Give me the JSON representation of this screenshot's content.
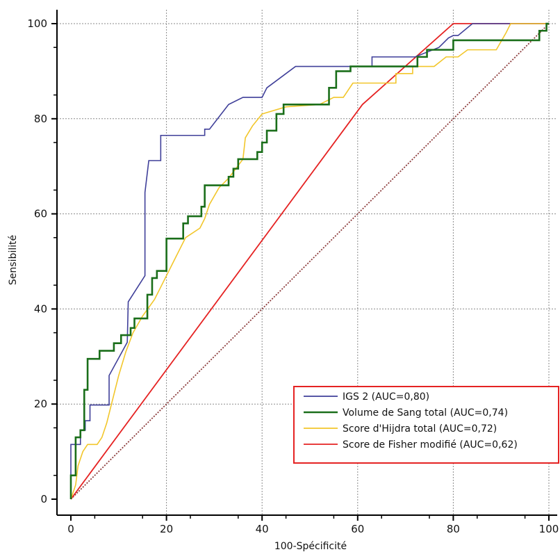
{
  "chart_data": {
    "type": "line",
    "title": "",
    "xlabel": "100-Spécificité",
    "ylabel": "Sensibilité",
    "xlim": [
      0,
      100
    ],
    "ylim": [
      0,
      100
    ],
    "x_ticks": [
      "0",
      "20",
      "40",
      "60",
      "80",
      "100"
    ],
    "y_ticks": [
      "0",
      "20",
      "40",
      "60",
      "80",
      "100"
    ],
    "grid": true,
    "legend_position": "bottom-right",
    "reference_line": {
      "color": "#8b3a3a",
      "points": [
        [
          0,
          0
        ],
        [
          100,
          100
        ]
      ]
    },
    "series": [
      {
        "name": "IGS 2 (AUC=0,80)",
        "color": "#3f3f99",
        "points": [
          [
            0,
            0
          ],
          [
            0,
            11.5
          ],
          [
            2,
            11.5
          ],
          [
            2,
            14.5
          ],
          [
            3,
            14.5
          ],
          [
            3,
            16.5
          ],
          [
            4,
            16.5
          ],
          [
            4,
            19.8
          ],
          [
            8,
            19.8
          ],
          [
            8,
            26
          ],
          [
            11.8,
            33
          ],
          [
            12,
            41.5
          ],
          [
            15.5,
            47
          ],
          [
            15.5,
            64.5
          ],
          [
            16.3,
            71.2
          ],
          [
            18.8,
            71.2
          ],
          [
            18.8,
            76.5
          ],
          [
            28,
            76.5
          ],
          [
            28,
            77.8
          ],
          [
            29,
            77.8
          ],
          [
            33,
            83
          ],
          [
            36,
            84.5
          ],
          [
            40,
            84.5
          ],
          [
            41,
            86.5
          ],
          [
            47,
            91
          ],
          [
            63,
            91
          ],
          [
            63,
            93
          ],
          [
            72,
            93
          ],
          [
            77,
            95
          ],
          [
            79,
            97
          ],
          [
            80,
            97.5
          ],
          [
            81,
            97.5
          ],
          [
            84,
            100
          ],
          [
            100,
            100
          ]
        ]
      },
      {
        "name": "Volume de Sang total (AUC=0,74)",
        "color": "#1a6e1a",
        "points": [
          [
            0,
            0
          ],
          [
            0,
            5
          ],
          [
            1,
            5
          ],
          [
            1,
            13
          ],
          [
            2,
            13
          ],
          [
            2,
            14.5
          ],
          [
            2.8,
            14.5
          ],
          [
            2.8,
            23
          ],
          [
            3.5,
            23
          ],
          [
            3.5,
            29.5
          ],
          [
            6,
            29.5
          ],
          [
            6,
            31.2
          ],
          [
            9,
            31.2
          ],
          [
            9,
            32.8
          ],
          [
            10.5,
            32.8
          ],
          [
            10.5,
            34.5
          ],
          [
            12.5,
            34.5
          ],
          [
            12.5,
            36
          ],
          [
            13.3,
            36
          ],
          [
            13.3,
            38
          ],
          [
            16,
            38
          ],
          [
            16,
            43
          ],
          [
            17,
            43
          ],
          [
            17,
            46.5
          ],
          [
            18,
            46.5
          ],
          [
            18,
            48
          ],
          [
            20,
            48
          ],
          [
            20,
            54.8
          ],
          [
            23.5,
            54.8
          ],
          [
            23.5,
            58
          ],
          [
            24.5,
            58
          ],
          [
            24.5,
            59.5
          ],
          [
            27.3,
            59.5
          ],
          [
            27.3,
            61.5
          ],
          [
            28,
            61.5
          ],
          [
            28,
            66
          ],
          [
            33,
            66
          ],
          [
            33,
            67.8
          ],
          [
            34,
            67.8
          ],
          [
            34,
            69.5
          ],
          [
            35,
            69.5
          ],
          [
            35,
            71.5
          ],
          [
            39,
            71.5
          ],
          [
            39,
            73
          ],
          [
            40,
            73
          ],
          [
            40,
            75
          ],
          [
            41,
            75
          ],
          [
            41,
            77.5
          ],
          [
            43,
            77.5
          ],
          [
            43,
            81
          ],
          [
            44.5,
            81
          ],
          [
            44.5,
            83
          ],
          [
            54,
            83
          ],
          [
            54,
            86.5
          ],
          [
            55.5,
            86.5
          ],
          [
            55.5,
            90
          ],
          [
            58.5,
            90
          ],
          [
            58.5,
            91
          ],
          [
            72.5,
            91
          ],
          [
            72.5,
            93
          ],
          [
            74.5,
            93
          ],
          [
            74.5,
            94.5
          ],
          [
            80,
            94.5
          ],
          [
            80,
            96.5
          ],
          [
            98,
            96.5
          ],
          [
            98,
            98.5
          ],
          [
            99.5,
            98.5
          ],
          [
            99.5,
            100
          ],
          [
            100,
            100
          ]
        ]
      },
      {
        "name": "Score d'Hijdra total (AUC=0,72)",
        "color": "#f2c62a",
        "points": [
          [
            0,
            0
          ],
          [
            1,
            3
          ],
          [
            1.5,
            7
          ],
          [
            2.5,
            10
          ],
          [
            3.5,
            11.5
          ],
          [
            5.5,
            11.5
          ],
          [
            6.5,
            13
          ],
          [
            7.5,
            16
          ],
          [
            8.5,
            20
          ],
          [
            10,
            26
          ],
          [
            11.5,
            31
          ],
          [
            13,
            35
          ],
          [
            15,
            38.5
          ],
          [
            17.5,
            42
          ],
          [
            19,
            45
          ],
          [
            20.5,
            48
          ],
          [
            22,
            51
          ],
          [
            24,
            55
          ],
          [
            27,
            57
          ],
          [
            28,
            59
          ],
          [
            29,
            62
          ],
          [
            31,
            65.5
          ],
          [
            33,
            67.5
          ],
          [
            36,
            71.5
          ],
          [
            36.5,
            76
          ],
          [
            38,
            78.5
          ],
          [
            40,
            81
          ],
          [
            45,
            82.5
          ],
          [
            52,
            83
          ],
          [
            55,
            84.5
          ],
          [
            57,
            84.5
          ],
          [
            59,
            87.5
          ],
          [
            68,
            87.5
          ],
          [
            68,
            89.5
          ],
          [
            71.5,
            89.5
          ],
          [
            71.5,
            91
          ],
          [
            76,
            91
          ],
          [
            78.5,
            93
          ],
          [
            81,
            93
          ],
          [
            83,
            94.5
          ],
          [
            89,
            94.5
          ],
          [
            91,
            98
          ],
          [
            92,
            100
          ],
          [
            100,
            100
          ]
        ]
      },
      {
        "name": "Score de Fisher modifié (AUC=0,62)",
        "color": "#e52222",
        "points": [
          [
            0,
            0
          ],
          [
            61,
            83
          ],
          [
            80,
            100
          ],
          [
            100,
            100
          ]
        ]
      }
    ]
  }
}
